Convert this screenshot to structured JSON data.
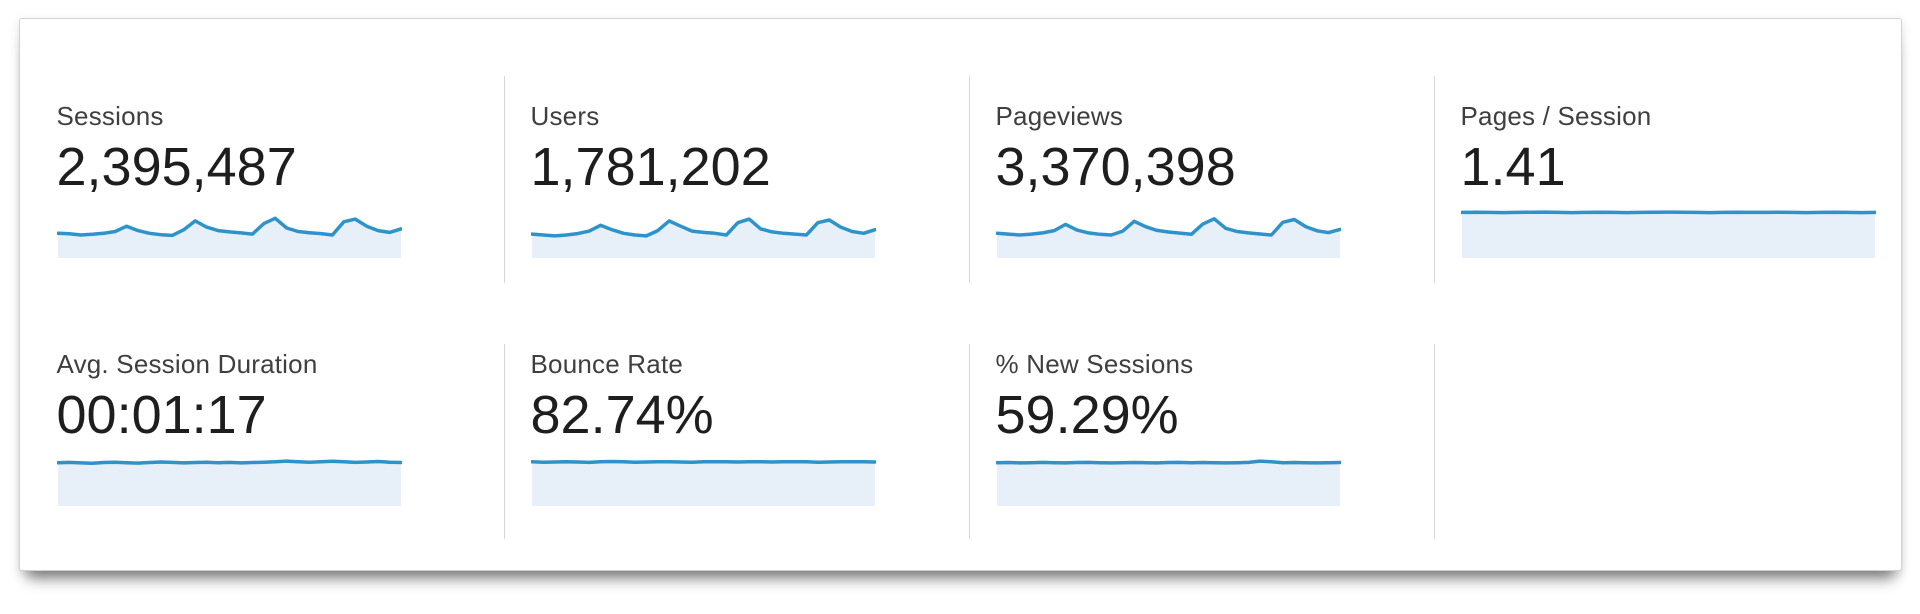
{
  "colors": {
    "spark_line": "#2e93cb",
    "spark_fill": "#e7f0f8",
    "divider": "#d6d6d6",
    "label": "#3f3f3f",
    "value": "#1e1e1e",
    "panel_border": "#d2d2d2",
    "page_background": "#ffffff"
  },
  "metrics": [
    {
      "id": "sessions",
      "label": "Sessions",
      "value": "2,395,487",
      "sparkline": [
        16,
        16.3,
        17,
        16.6,
        16,
        15,
        12,
        14.5,
        16,
        16.8,
        17.2,
        14,
        9,
        12.5,
        14.5,
        15.2,
        15.8,
        16.5,
        10.5,
        7.5,
        13,
        15,
        15.7,
        16.2,
        17,
        9.5,
        8,
        12,
        14.5,
        15.5,
        13.5
      ]
    },
    {
      "id": "users",
      "label": "Users",
      "value": "1,781,202",
      "sparkline": [
        16.5,
        17,
        17.5,
        17,
        16.2,
        14.8,
        11.5,
        14,
        16,
        17,
        17.5,
        14.5,
        9,
        12,
        14.8,
        15.5,
        16,
        17,
        10,
        8,
        13.5,
        15.2,
        16,
        16.5,
        17,
        10,
        8.5,
        12.5,
        15,
        16,
        14
      ]
    },
    {
      "id": "pageviews",
      "label": "Pageviews",
      "value": "3,370,398",
      "sparkline": [
        16,
        16.5,
        17,
        16.5,
        15.8,
        14.5,
        11,
        14.2,
        15.8,
        16.6,
        17,
        14.8,
        9.2,
        12.3,
        14.4,
        15.3,
        15.9,
        16.6,
        10.8,
        7.8,
        13.2,
        15,
        15.8,
        16.4,
        17,
        9.8,
        8.2,
        12.2,
        14.6,
        15.6,
        13.8
      ]
    },
    {
      "id": "pages-per-session",
      "label": "Pages / Session",
      "value": "1.41",
      "sparkline": [
        4.2,
        4.1,
        4.2,
        4.3,
        4.2,
        4.1,
        4.0,
        4.2,
        4.3,
        4.2,
        4.1,
        4.2,
        4.3,
        4.2,
        4.1,
        4.0,
        4.1,
        4.2,
        4.3,
        4.2,
        4.1,
        4.2,
        4.2,
        4.1,
        4.2,
        4.3,
        4.2,
        4.1,
        4.2,
        4.3,
        4.2
      ]
    },
    {
      "id": "avg-session-duration",
      "label": "Avg. Session Duration",
      "value": "00:01:17",
      "sparkline": [
        5.5,
        5.3,
        5.6,
        5.8,
        5.4,
        5.2,
        5.5,
        5.7,
        5.4,
        5.1,
        5.3,
        5.6,
        5.4,
        5.2,
        5.5,
        5.3,
        5.6,
        5.4,
        5.2,
        5.0,
        4.6,
        4.9,
        5.2,
        5.0,
        4.7,
        5.0,
        5.3,
        5.1,
        4.8,
        5.2,
        5.4
      ]
    },
    {
      "id": "bounce-rate",
      "label": "Bounce Rate",
      "value": "82.74%",
      "sparkline": [
        5.0,
        5.2,
        5.1,
        4.9,
        5.1,
        5.3,
        5.0,
        4.8,
        5.0,
        5.2,
        5.1,
        5.0,
        4.9,
        5.1,
        5.2,
        5.0,
        4.9,
        5.0,
        5.1,
        5.0,
        4.9,
        5.1,
        5.0,
        4.9,
        5.0,
        5.2,
        5.1,
        5.0,
        4.9,
        5.0,
        5.1
      ]
    },
    {
      "id": "percent-new-sessions",
      "label": "% New Sessions",
      "value": "59.29%",
      "sparkline": [
        5.5,
        5.4,
        5.6,
        5.5,
        5.3,
        5.5,
        5.6,
        5.4,
        5.3,
        5.5,
        5.6,
        5.5,
        5.4,
        5.5,
        5.6,
        5.4,
        5.3,
        5.5,
        5.4,
        5.5,
        5.6,
        5.5,
        5.3,
        4.6,
        5.0,
        5.5,
        5.4,
        5.5,
        5.6,
        5.5,
        5.4
      ]
    }
  ]
}
